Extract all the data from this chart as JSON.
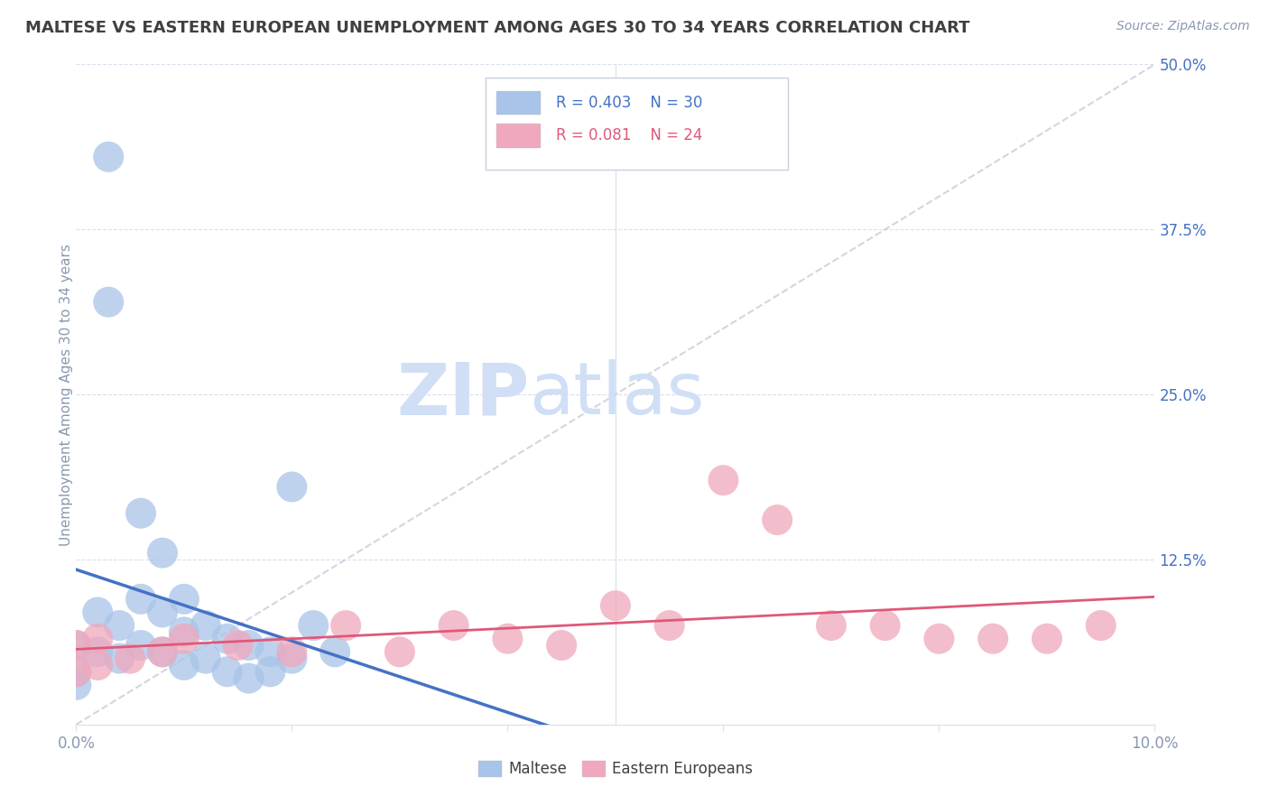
{
  "title": "MALTESE VS EASTERN EUROPEAN UNEMPLOYMENT AMONG AGES 30 TO 34 YEARS CORRELATION CHART",
  "source_text": "Source: ZipAtlas.com",
  "ylabel": "Unemployment Among Ages 30 to 34 years",
  "xlim": [
    0.0,
    0.1
  ],
  "ylim": [
    0.0,
    0.5
  ],
  "xticks": [
    0.0,
    0.02,
    0.04,
    0.06,
    0.08,
    0.1
  ],
  "xticklabels": [
    "0.0%",
    "",
    "",
    "",
    "",
    "10.0%"
  ],
  "yticks": [
    0.0,
    0.125,
    0.25,
    0.375,
    0.5
  ],
  "yticklabels": [
    "",
    "12.5%",
    "25.0%",
    "37.5%",
    "50.0%"
  ],
  "legend_r1": "R = 0.403",
  "legend_n1": "N = 30",
  "legend_r2": "R = 0.081",
  "legend_n2": "N = 24",
  "blue_color": "#a8c4e8",
  "pink_color": "#f0a8bc",
  "blue_line_color": "#4472c4",
  "pink_line_color": "#e05878",
  "watermark_zip": "ZIP",
  "watermark_atlas": "atlas",
  "watermark_color": "#d0dff5",
  "background_color": "#ffffff",
  "title_color": "#404040",
  "axis_color": "#8898b0",
  "grid_color": "#d8e0ec",
  "diag_color": "#c8ccd8",
  "maltese_x": [
    0.0,
    0.0,
    0.0,
    0.002,
    0.002,
    0.004,
    0.004,
    0.006,
    0.006,
    0.006,
    0.008,
    0.008,
    0.008,
    0.01,
    0.01,
    0.01,
    0.012,
    0.012,
    0.014,
    0.014,
    0.016,
    0.016,
    0.018,
    0.018,
    0.02,
    0.02,
    0.022,
    0.024,
    0.003,
    0.003
  ],
  "maltese_y": [
    0.06,
    0.04,
    0.03,
    0.085,
    0.055,
    0.075,
    0.05,
    0.16,
    0.095,
    0.06,
    0.13,
    0.085,
    0.055,
    0.095,
    0.07,
    0.045,
    0.075,
    0.05,
    0.065,
    0.04,
    0.06,
    0.035,
    0.055,
    0.04,
    0.18,
    0.05,
    0.075,
    0.055,
    0.43,
    0.32
  ],
  "eastern_x": [
    0.0,
    0.0,
    0.002,
    0.002,
    0.005,
    0.008,
    0.01,
    0.015,
    0.02,
    0.025,
    0.03,
    0.035,
    0.04,
    0.045,
    0.05,
    0.055,
    0.06,
    0.065,
    0.07,
    0.075,
    0.08,
    0.085,
    0.09,
    0.095
  ],
  "eastern_y": [
    0.06,
    0.04,
    0.065,
    0.045,
    0.05,
    0.055,
    0.065,
    0.06,
    0.055,
    0.075,
    0.055,
    0.075,
    0.065,
    0.06,
    0.09,
    0.075,
    0.185,
    0.155,
    0.075,
    0.075,
    0.065,
    0.065,
    0.065,
    0.075
  ]
}
